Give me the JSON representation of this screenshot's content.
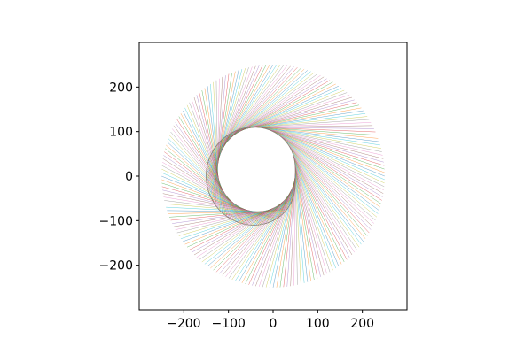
{
  "chart_data": {
    "type": "line",
    "title": "",
    "xlabel": "",
    "ylabel": "",
    "xlim": [
      -300,
      300
    ],
    "ylim": [
      -300,
      300
    ],
    "grid": false,
    "legend": "none",
    "x_ticks": [
      {
        "value": -200,
        "label": "−200"
      },
      {
        "value": -100,
        "label": "−100"
      },
      {
        "value": 0,
        "label": "0"
      },
      {
        "value": 100,
        "label": "100"
      },
      {
        "value": 200,
        "label": "200"
      }
    ],
    "y_ticks": [
      {
        "value": 200,
        "label": "200"
      },
      {
        "value": 100,
        "label": "100"
      },
      {
        "value": 0,
        "label": "0"
      },
      {
        "value": -100,
        "label": "−100"
      },
      {
        "value": -200,
        "label": "−200"
      }
    ],
    "string_art": {
      "description_of_values": "chords from points on outer circle to points on inner cardioid-like curve",
      "outer_radius": 250,
      "inner_base_radius": 100,
      "inner_amplitude": 50,
      "line_count": 200,
      "colors": [
        "#1f77b4",
        "#ff7f0e",
        "#2ca02c",
        "#d62728",
        "#9467bd",
        "#8c564b",
        "#e377c2",
        "#7f7f7f",
        "#bcbd22",
        "#17becf"
      ]
    }
  }
}
